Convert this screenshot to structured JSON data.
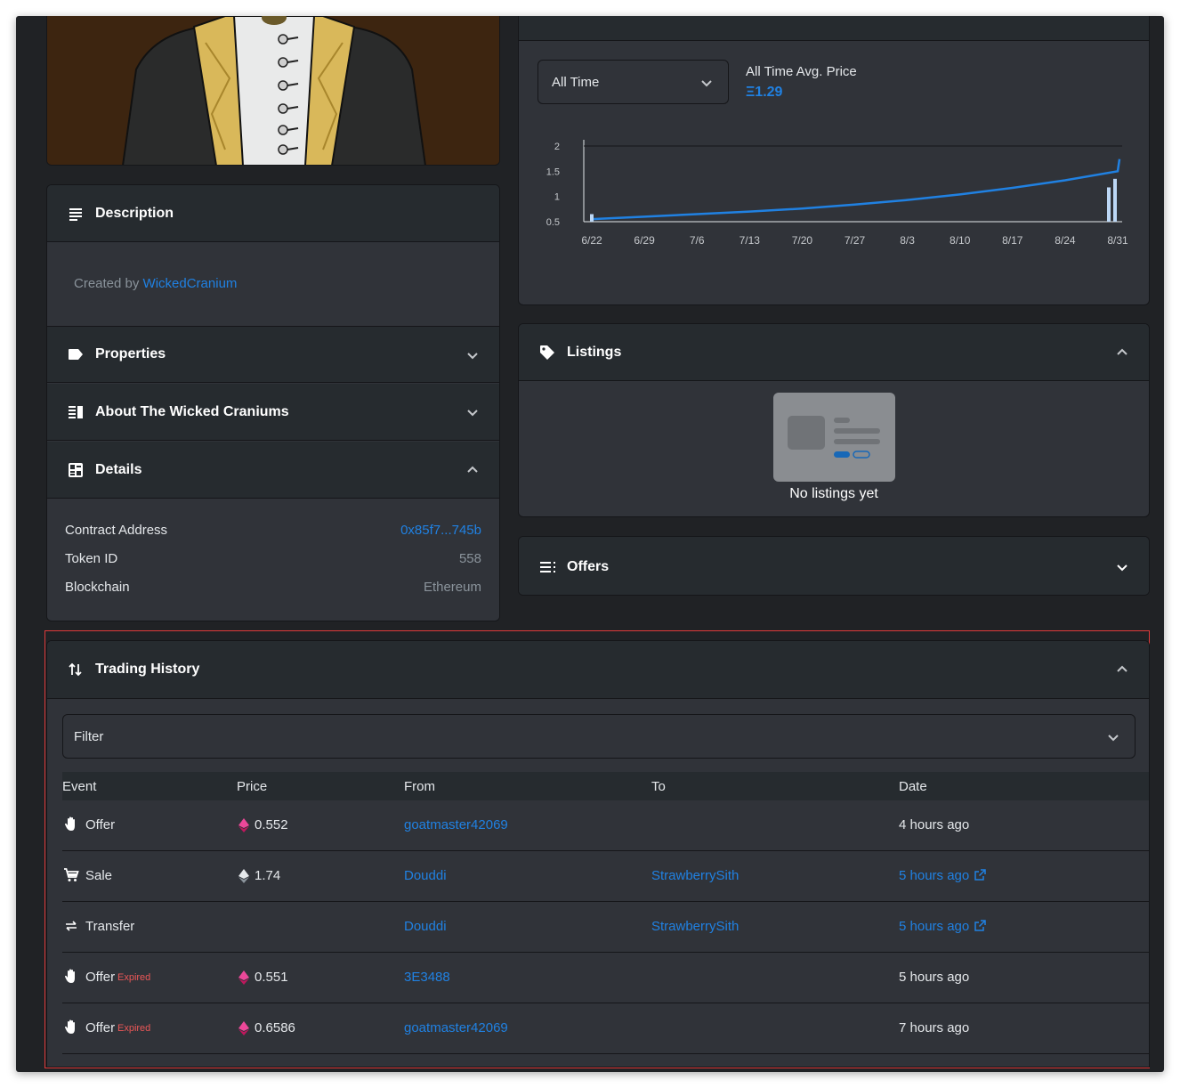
{
  "description": {
    "title": "Description",
    "created_prefix": "Created by",
    "creator": "WickedCranium"
  },
  "properties": {
    "title": "Properties"
  },
  "about": {
    "title": "About The Wicked Craniums"
  },
  "details": {
    "title": "Details",
    "rows": [
      {
        "label": "Contract Address",
        "value": "0x85f7...745b"
      },
      {
        "label": "Token ID",
        "value": "558"
      },
      {
        "label": "Blockchain",
        "value": "Ethereum"
      }
    ]
  },
  "price_history": {
    "range_select": "All Time",
    "avg_label": "All Time Avg. Price",
    "avg_value": "Ξ1.29"
  },
  "chart_data": {
    "type": "line",
    "x": [
      "6/22",
      "6/29",
      "7/6",
      "7/13",
      "7/20",
      "7/27",
      "8/3",
      "8/10",
      "8/17",
      "8/24",
      "8/31"
    ],
    "series": [
      {
        "values": [
          0.55,
          0.6,
          0.65,
          0.7,
          0.76,
          0.84,
          0.93,
          1.04,
          1.17,
          1.32,
          1.5
        ]
      }
    ],
    "end_value": 1.74,
    "yticks": [
      "2",
      "1.5",
      "1",
      "0.5"
    ],
    "ylim": [
      0.5,
      2
    ],
    "grid": false,
    "line_color": "#2081e2"
  },
  "listings": {
    "title": "Listings",
    "empty_text": "No listings yet"
  },
  "offers": {
    "title": "Offers"
  },
  "trading_history": {
    "title": "Trading History",
    "filter_label": "Filter",
    "columns": {
      "event": "Event",
      "price": "Price",
      "from": "From",
      "to": "To",
      "date": "Date"
    },
    "rows": [
      {
        "event": "Offer",
        "expired": "",
        "icon": "hand-icon",
        "price": "0.552",
        "price_icon": "weth-icon",
        "from": "goatmaster42069",
        "to": "",
        "date": "4 hours ago",
        "date_link": false
      },
      {
        "event": "Sale",
        "expired": "",
        "icon": "cart-icon",
        "price": "1.74",
        "price_icon": "eth-icon",
        "from": "Douddi",
        "to": "StrawberrySith",
        "date": "5 hours ago",
        "date_link": true
      },
      {
        "event": "Transfer",
        "expired": "",
        "icon": "transfer-icon",
        "price": "",
        "price_icon": "",
        "from": "Douddi",
        "to": "StrawberrySith",
        "date": "5 hours ago",
        "date_link": true
      },
      {
        "event": "Offer",
        "expired": "Expired",
        "icon": "hand-icon",
        "price": "0.551",
        "price_icon": "weth-icon",
        "from": "3E3488",
        "to": "",
        "date": "5 hours ago",
        "date_link": false
      },
      {
        "event": "Offer",
        "expired": "Expired",
        "icon": "hand-icon",
        "price": "0.6586",
        "price_icon": "weth-icon",
        "from": "goatmaster42069",
        "to": "",
        "date": "7 hours ago",
        "date_link": false
      }
    ]
  }
}
